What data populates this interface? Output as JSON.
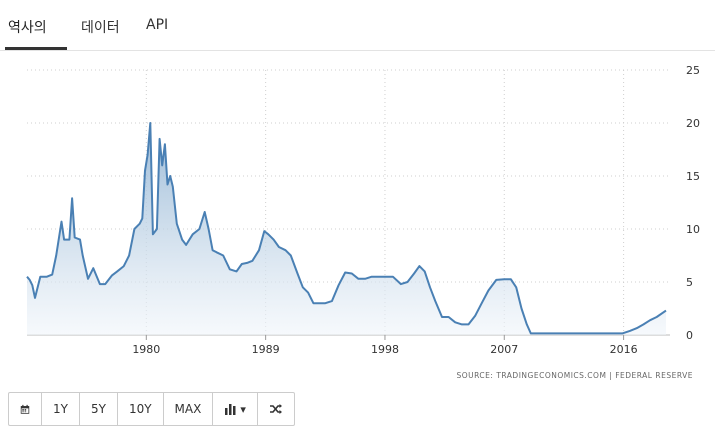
{
  "tabs": [
    {
      "label": "역사의",
      "active": true
    },
    {
      "label": "데이터",
      "active": false
    },
    {
      "label": "API",
      "active": false
    }
  ],
  "source_text": "SOURCE: TRADINGECONOMICS.COM | FEDERAL RESERVE",
  "toolbar": {
    "calendar_icon": "calendar-icon",
    "range_1y": "1Y",
    "range_5y": "5Y",
    "range_10y": "10Y",
    "range_max": "MAX",
    "chart_type_icon": "bar-chart-icon",
    "chart_type_caret": "▾",
    "compare_icon": "shuffle-icon"
  },
  "colors": {
    "line": "#4a80b4",
    "fill_top": "#8fb2d2",
    "fill_bottom": "#f0f5fa",
    "grid": "#cfcfcf"
  },
  "chart_data": {
    "type": "area",
    "title": "",
    "xlabel": "",
    "ylabel": "",
    "xlim": [
      1971,
      2019.5
    ],
    "ylim": [
      0,
      25
    ],
    "x_ticks": [
      1980,
      1989,
      1998,
      2007,
      2016
    ],
    "y_ticks": [
      0,
      5,
      10,
      15,
      20,
      25
    ],
    "y_axis_side": "right",
    "grid": true,
    "series": [
      {
        "name": "",
        "x": [
          1971.0,
          1971.2,
          1971.4,
          1971.6,
          1972.0,
          1972.5,
          1972.9,
          1973.2,
          1973.6,
          1973.8,
          1974.2,
          1974.4,
          1974.6,
          1975.0,
          1975.2,
          1975.6,
          1976.0,
          1976.5,
          1976.9,
          1977.4,
          1977.8,
          1978.3,
          1978.7,
          1979.1,
          1979.5,
          1979.7,
          1979.9,
          1980.1,
          1980.3,
          1980.5,
          1980.8,
          1981.0,
          1981.2,
          1981.4,
          1981.6,
          1981.8,
          1982.0,
          1982.3,
          1982.7,
          1983.0,
          1983.5,
          1984.0,
          1984.4,
          1984.7,
          1985.0,
          1985.3,
          1985.8,
          1986.3,
          1986.8,
          1987.2,
          1987.6,
          1988.0,
          1988.5,
          1988.9,
          1989.2,
          1989.6,
          1990.0,
          1990.5,
          1990.9,
          1991.4,
          1991.8,
          1992.2,
          1992.6,
          1993.0,
          1993.5,
          1994.0,
          1994.5,
          1995.0,
          1995.5,
          1996.0,
          1996.5,
          1997.0,
          1997.5,
          1998.0,
          1998.6,
          1999.2,
          1999.7,
          2000.2,
          2000.6,
          2001.0,
          2001.4,
          2001.8,
          2002.3,
          2002.8,
          2003.3,
          2003.8,
          2004.3,
          2004.8,
          2005.3,
          2005.8,
          2006.4,
          2007.0,
          2007.5,
          2007.9,
          2008.3,
          2008.7,
          2009.0,
          2010.0,
          2012.0,
          2014.0,
          2015.9,
          2016.5,
          2017.0,
          2017.5,
          2018.0,
          2018.5,
          2019.2
        ],
        "values": [
          5.5,
          5.2,
          4.7,
          3.5,
          5.5,
          5.5,
          5.7,
          7.5,
          10.7,
          9.0,
          9.0,
          12.9,
          9.2,
          9.0,
          7.5,
          5.3,
          6.3,
          4.8,
          4.8,
          5.6,
          6.0,
          6.5,
          7.5,
          10.0,
          10.5,
          11.0,
          15.5,
          17.0,
          20.0,
          9.5,
          10.0,
          18.5,
          16.0,
          18.0,
          14.2,
          15.0,
          14.0,
          10.5,
          9.0,
          8.5,
          9.5,
          10.0,
          11.6,
          10.0,
          8.0,
          7.8,
          7.5,
          6.2,
          6.0,
          6.7,
          6.8,
          7.0,
          8.0,
          9.8,
          9.5,
          9.0,
          8.3,
          8.0,
          7.5,
          5.8,
          4.5,
          4.0,
          3.0,
          3.0,
          3.0,
          3.2,
          4.7,
          5.9,
          5.8,
          5.3,
          5.3,
          5.5,
          5.5,
          5.5,
          5.5,
          4.8,
          5.0,
          5.8,
          6.5,
          6.0,
          4.5,
          3.2,
          1.7,
          1.7,
          1.2,
          1.0,
          1.0,
          1.8,
          3.0,
          4.2,
          5.2,
          5.25,
          5.25,
          4.5,
          2.5,
          1.0,
          0.15,
          0.15,
          0.15,
          0.15,
          0.15,
          0.4,
          0.65,
          1.0,
          1.4,
          1.7,
          2.3
        ]
      }
    ]
  }
}
